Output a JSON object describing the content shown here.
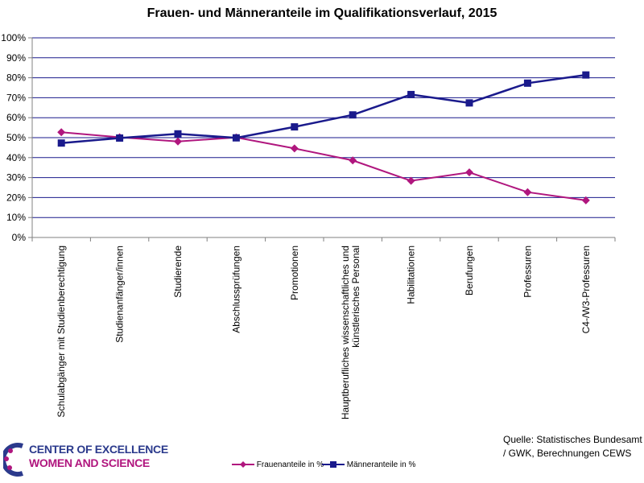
{
  "chart_data": {
    "type": "line",
    "title": "Frauen- und Männeranteile im Qualifikationsverlauf, 2015",
    "xlabel": "",
    "ylabel": "",
    "ylim": [
      0,
      100
    ],
    "y_ticks": [
      "0%",
      "10%",
      "20%",
      "30%",
      "40%",
      "50%",
      "60%",
      "70%",
      "80%",
      "90%",
      "100%"
    ],
    "grid": true,
    "legend_position": "bottom",
    "categories": [
      "Schulabgänger mit Studienberechtigung",
      "Studienanfänger/innen",
      "Studierende",
      "Abschlussprüfungen",
      "Promotionen",
      [
        "Hauptberufliches wissenschaftliches und",
        "künstlerisches Personal"
      ],
      "Habilitationen",
      "Berufungen",
      "Professuren",
      "C4-/W3-Professuren"
    ],
    "series": [
      {
        "name": "Frauenanteile in %",
        "color": "#b0167e",
        "marker": "diamond",
        "values": [
          52.7,
          50.2,
          48.1,
          50.1,
          44.6,
          38.6,
          28.4,
          32.6,
          22.7,
          18.6
        ]
      },
      {
        "name": "Männeranteile in %",
        "color": "#1a1a8c",
        "marker": "square",
        "values": [
          47.3,
          49.8,
          51.9,
          49.9,
          55.4,
          61.4,
          71.6,
          67.4,
          77.3,
          81.4
        ]
      }
    ],
    "source": [
      "Quelle: Statistisches Bundesamt",
      "/ GWK, Berechnungen CEWS"
    ]
  },
  "logo": {
    "line1": "CENTER OF EXCELLENCE",
    "line2": "WOMEN AND SCIENCE",
    "icon": "cews-logo-icon"
  },
  "colors": {
    "grid": "#1a1a8c",
    "axis": "#808080"
  }
}
